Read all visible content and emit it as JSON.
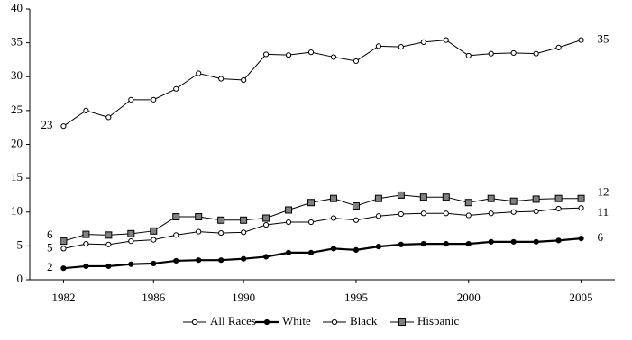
{
  "chart_data": {
    "type": "line",
    "x": [
      1982,
      1983,
      1984,
      1985,
      1986,
      1987,
      1988,
      1989,
      1990,
      1991,
      1992,
      1993,
      1994,
      1995,
      1996,
      1997,
      1998,
      1999,
      2000,
      2001,
      2002,
      2003,
      2004,
      2005
    ],
    "xlim": [
      1980.5,
      2006.5
    ],
    "xticks": [
      1982,
      1986,
      1990,
      1995,
      2000,
      2005
    ],
    "ylim": [
      0,
      40
    ],
    "yticks": [
      0,
      5,
      10,
      15,
      20,
      25,
      30,
      35,
      40
    ],
    "legend": "bottom",
    "series": [
      {
        "name": "All Races",
        "color": "#000000",
        "marker": "circle",
        "marker_fill": "#ffffff",
        "values": [
          4.6,
          5.3,
          5.2,
          5.7,
          5.9,
          6.6,
          7.1,
          6.9,
          7.0,
          8.1,
          8.5,
          8.5,
          9.1,
          8.8,
          9.4,
          9.7,
          9.8,
          9.8,
          9.5,
          9.8,
          10.0,
          10.1,
          10.5,
          10.6
        ],
        "value_labels": [
          "5",
          null,
          null,
          null,
          null,
          null,
          null,
          null,
          null,
          null,
          null,
          null,
          null,
          null,
          null,
          null,
          null,
          null,
          null,
          null,
          null,
          null,
          null,
          "11"
        ]
      },
      {
        "name": "White",
        "color": "#000000",
        "marker": "circle",
        "marker_fill": "#000000",
        "values": [
          1.7,
          2.0,
          2.0,
          2.3,
          2.4,
          2.8,
          2.9,
          2.9,
          3.1,
          3.4,
          4.0,
          4.0,
          4.6,
          4.4,
          4.9,
          5.2,
          5.3,
          5.3,
          5.3,
          5.6,
          5.6,
          5.6,
          5.8,
          6.1
        ],
        "value_labels": [
          "2",
          null,
          null,
          null,
          null,
          null,
          null,
          null,
          null,
          null,
          null,
          null,
          null,
          null,
          null,
          null,
          null,
          null,
          null,
          null,
          null,
          null,
          null,
          "6"
        ]
      },
      {
        "name": "Black",
        "color": "#000000",
        "marker": "circle",
        "marker_fill": "#ffffff",
        "values": [
          22.7,
          25.0,
          24.0,
          26.6,
          26.6,
          28.2,
          30.5,
          29.7,
          29.5,
          33.3,
          33.2,
          33.6,
          32.9,
          32.3,
          34.5,
          34.4,
          35.1,
          35.4,
          33.1,
          33.4,
          33.5,
          33.4,
          34.3,
          35.4
        ],
        "value_labels": [
          "23",
          null,
          null,
          null,
          null,
          null,
          null,
          null,
          null,
          null,
          null,
          null,
          null,
          null,
          null,
          null,
          null,
          null,
          null,
          null,
          null,
          null,
          null,
          "35"
        ]
      },
      {
        "name": "Hispanic",
        "color": "#000000",
        "marker": "square",
        "marker_fill": "#808080",
        "values": [
          5.7,
          6.7,
          6.6,
          6.8,
          7.2,
          9.3,
          9.3,
          8.8,
          8.8,
          9.1,
          10.3,
          11.4,
          12.0,
          10.9,
          12.0,
          12.5,
          12.2,
          12.2,
          11.4,
          12.0,
          11.6,
          11.9,
          12.0,
          12.0
        ],
        "value_labels": [
          "6",
          null,
          null,
          null,
          null,
          null,
          null,
          null,
          null,
          null,
          null,
          null,
          null,
          null,
          null,
          null,
          null,
          null,
          null,
          null,
          null,
          null,
          null,
          "12"
        ]
      }
    ]
  }
}
